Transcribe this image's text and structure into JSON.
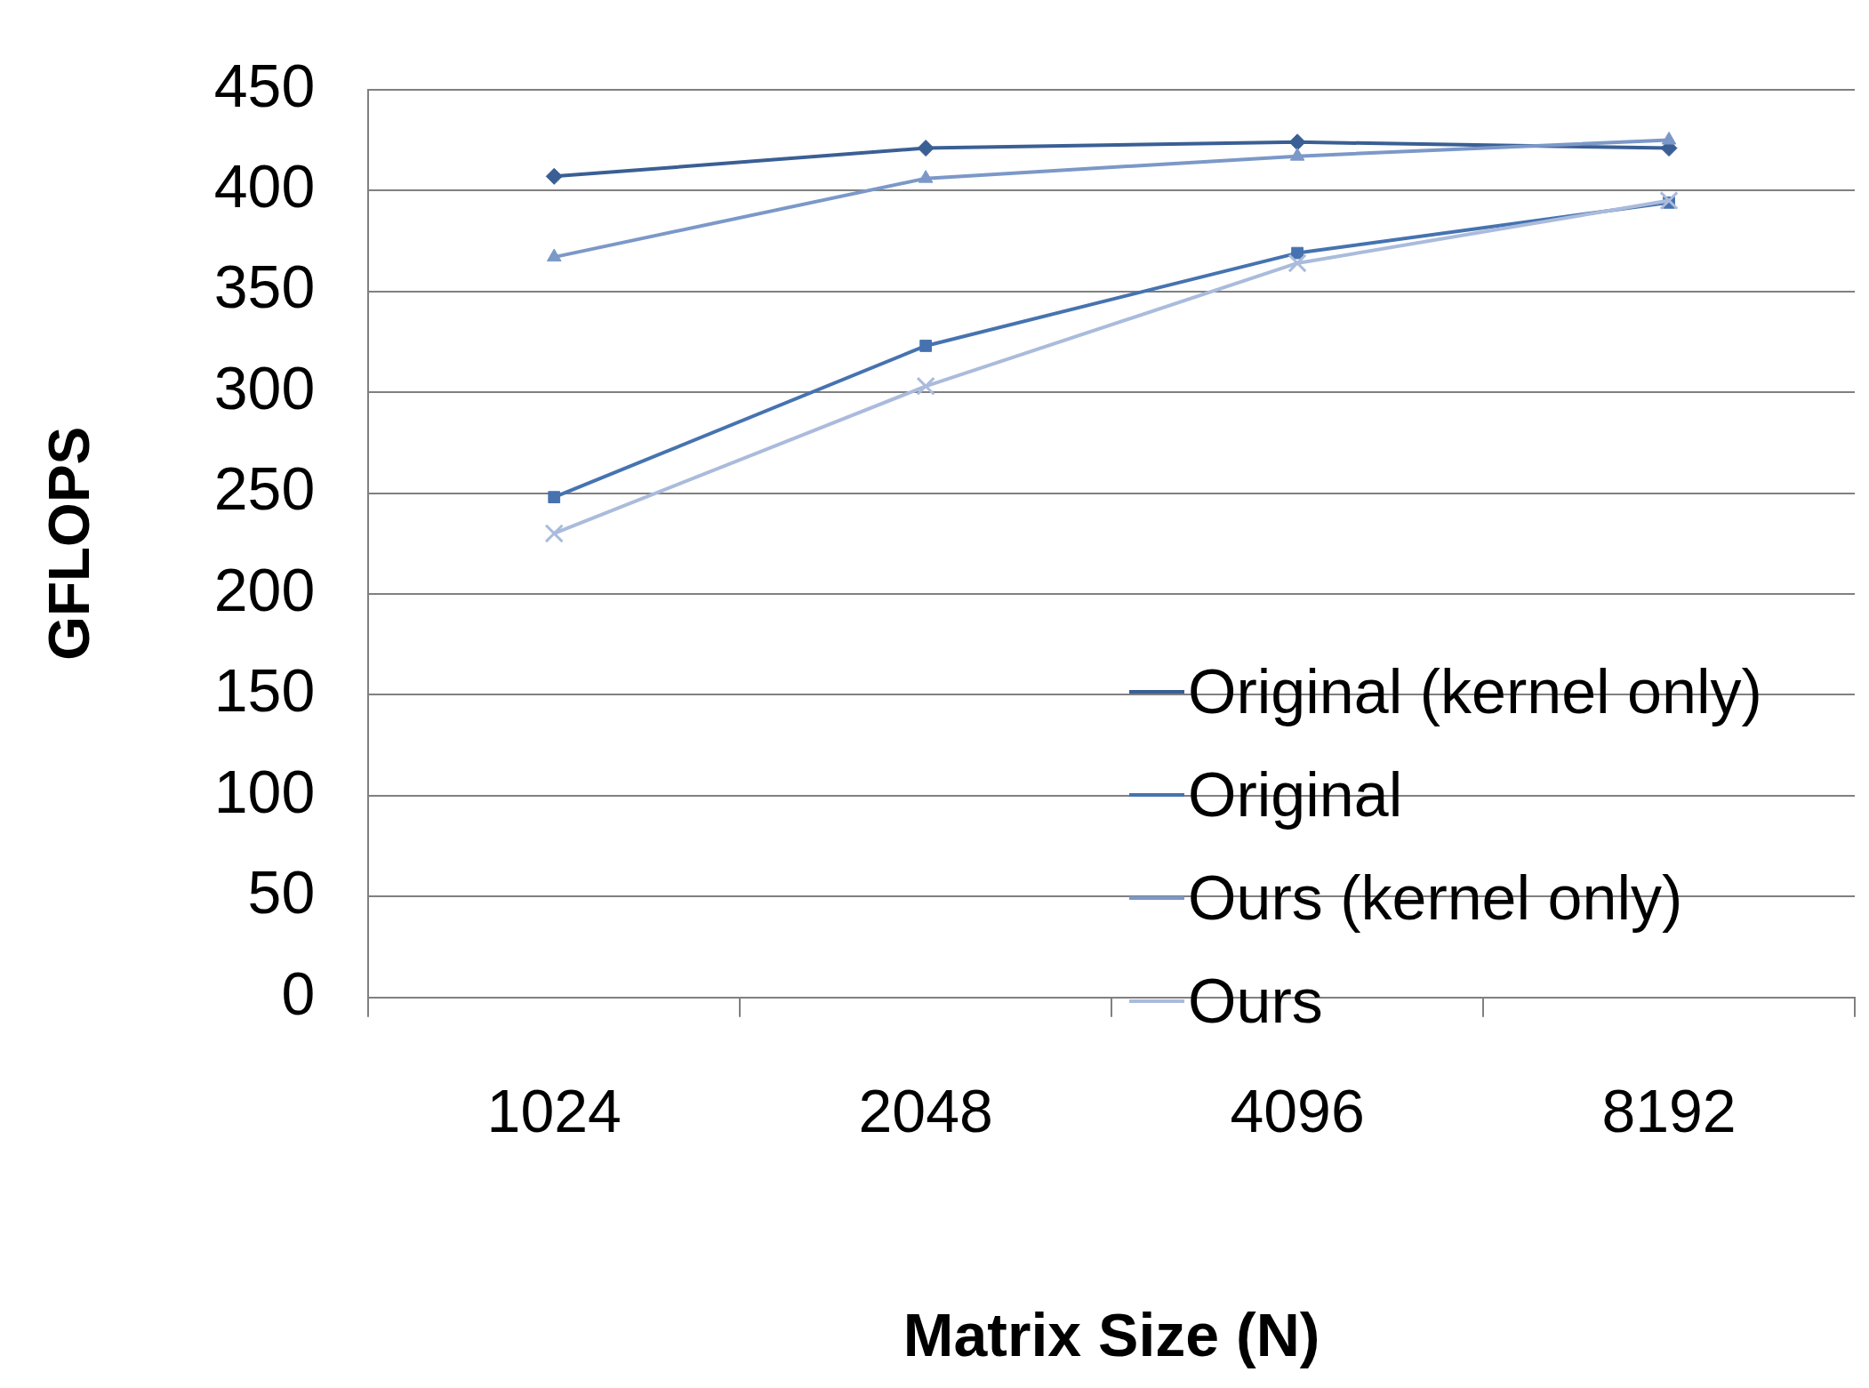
{
  "chart_data": {
    "type": "line",
    "xlabel": "Matrix Size (N)",
    "ylabel": "GFLOPS",
    "categories": [
      "1024",
      "2048",
      "4096",
      "8192"
    ],
    "series": [
      {
        "name": "Original (kernel only)",
        "color": "#3a5f94",
        "marker": "diamond",
        "values": [
          407,
          421,
          424,
          421
        ]
      },
      {
        "name": "Original",
        "color": "#4673b0",
        "marker": "square",
        "values": [
          248,
          323,
          369,
          394
        ]
      },
      {
        "name": "Ours (kernel only)",
        "color": "#7b98c8",
        "marker": "triangle",
        "values": [
          367,
          406,
          417,
          425
        ]
      },
      {
        "name": "Ours",
        "color": "#aabbdc",
        "marker": "cross",
        "values": [
          230,
          303,
          364,
          395
        ]
      }
    ],
    "ylim": [
      0,
      450
    ],
    "yticks": [
      0,
      50,
      100,
      150,
      200,
      250,
      300,
      350,
      400,
      450
    ],
    "grid": "y",
    "legend": "right",
    "line_style": "solid"
  }
}
